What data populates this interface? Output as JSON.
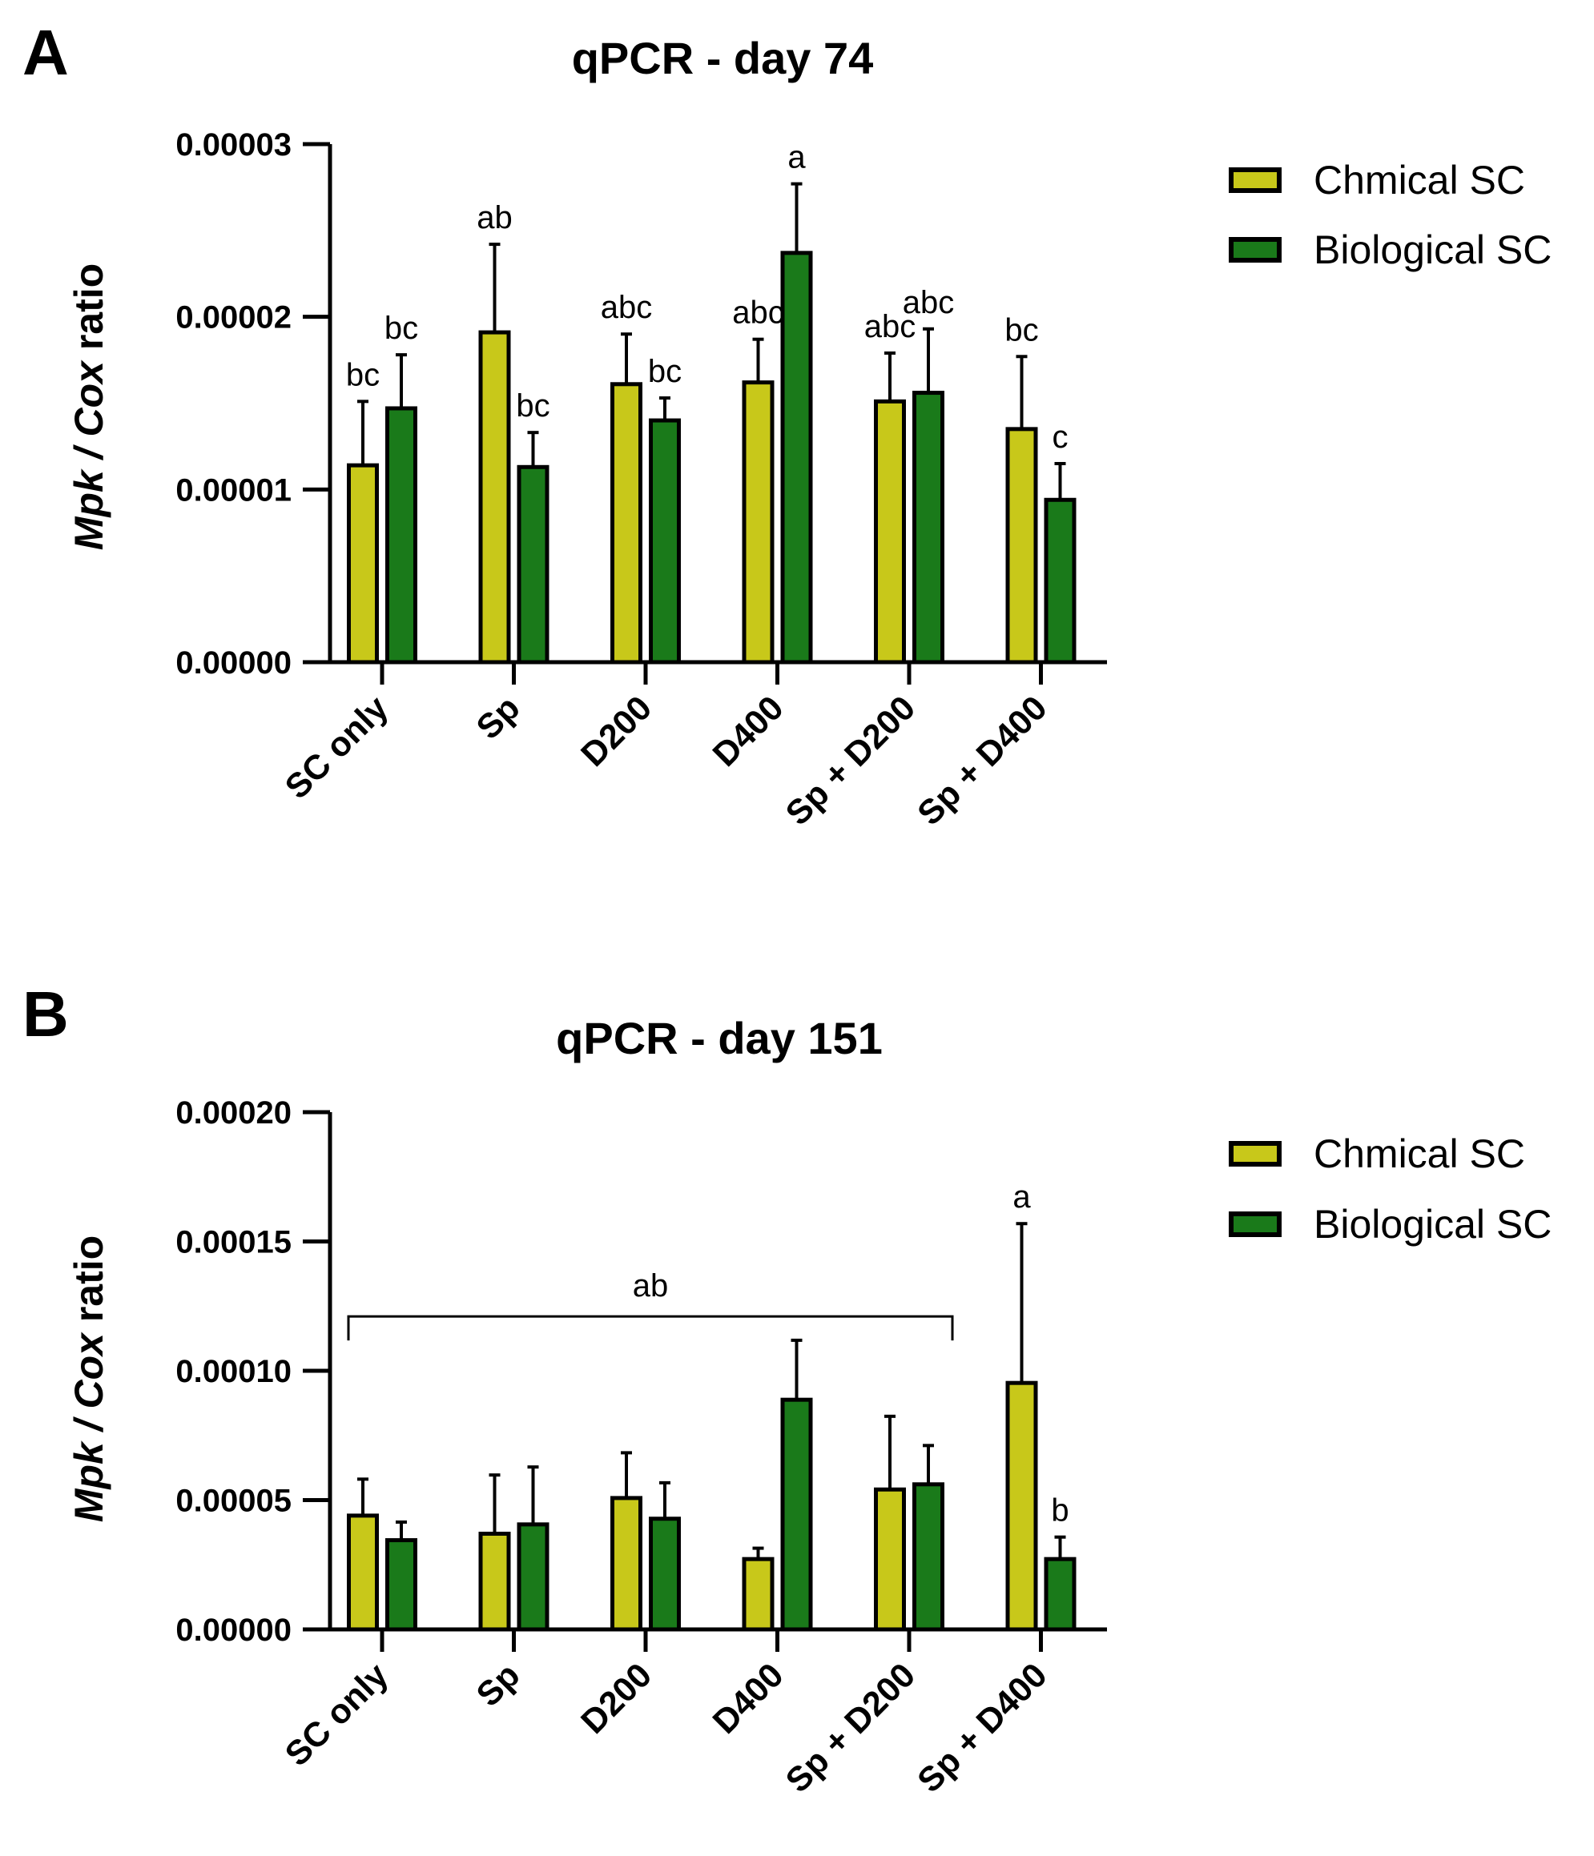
{
  "colors": {
    "chemical": "#c8c81a",
    "biological": "#1a7a1a",
    "stroke": "#000000"
  },
  "chart_data": [
    {
      "panel": "A",
      "type": "bar",
      "title": "qPCR - day 74",
      "ylabel": {
        "italic1": "Mpk",
        "sep": " / ",
        "italic2": "Cox",
        "suffix": " ratio"
      },
      "ylim": [
        0,
        3e-05
      ],
      "yticks": [
        {
          "value": 0,
          "label": "0.00000"
        },
        {
          "value": 1e-05,
          "label": "0.00001"
        },
        {
          "value": 2e-05,
          "label": "0.00002"
        },
        {
          "value": 3e-05,
          "label": "0.00003"
        }
      ],
      "categories": [
        "SC only",
        "Sp",
        "D200",
        "D400",
        "Sp + D200",
        "Sp + D400"
      ],
      "legend": [
        "Chmical SC",
        "Biological SC"
      ],
      "series": [
        {
          "name": "Chmical SC",
          "values": [
            1.14e-05,
            1.91e-05,
            1.61e-05,
            1.62e-05,
            1.51e-05,
            1.35e-05
          ],
          "errors": [
            3.7e-06,
            5.1e-06,
            2.9e-06,
            2.5e-06,
            2.8e-06,
            4.2e-06
          ],
          "letters": [
            "bc",
            "ab",
            "abc",
            "abc",
            "abc",
            "bc"
          ]
        },
        {
          "name": "Biological SC",
          "values": [
            1.47e-05,
            1.13e-05,
            1.4e-05,
            2.37e-05,
            1.56e-05,
            9.4e-06
          ],
          "errors": [
            3.1e-06,
            2e-06,
            1.3e-06,
            4e-06,
            3.7e-06,
            2.1e-06
          ],
          "letters": [
            "bc",
            "bc",
            "bc",
            "a",
            "abc",
            "c"
          ]
        }
      ]
    },
    {
      "panel": "B",
      "type": "bar",
      "title": "qPCR - day 151",
      "ylabel": {
        "italic1": "Mpk",
        "sep": " / ",
        "italic2": "Cox",
        "suffix": " ratio"
      },
      "ylim": [
        0,
        0.0002
      ],
      "yticks": [
        {
          "value": 0,
          "label": "0.00000"
        },
        {
          "value": 5e-05,
          "label": "0.00005"
        },
        {
          "value": 0.0001,
          "label": "0.00010"
        },
        {
          "value": 0.00015,
          "label": "0.00015"
        },
        {
          "value": 0.0002,
          "label": "0.00020"
        }
      ],
      "categories": [
        "SC only",
        "Sp",
        "D200",
        "D400",
        "Sp + D200",
        "Sp + D400"
      ],
      "legend": [
        "Chmical SC",
        "Biological SC"
      ],
      "series": [
        {
          "name": "Chmical SC",
          "values": [
            4.4e-05,
            3.7e-05,
            5.08e-05,
            2.72e-05,
            5.41e-05,
            9.53e-05
          ],
          "errors": [
            1.41e-05,
            2.27e-05,
            1.75e-05,
            4.2e-06,
            2.83e-05,
            6.16e-05
          ],
          "letters": [
            "",
            "",
            "",
            "",
            "",
            "a"
          ]
        },
        {
          "name": "Biological SC",
          "values": [
            3.45e-05,
            4.06e-05,
            4.28e-05,
            8.88e-05,
            5.61e-05,
            2.72e-05
          ],
          "errors": [
            7e-06,
            2.22e-05,
            1.39e-05,
            2.3e-05,
            1.5e-05,
            8.5e-06
          ],
          "letters": [
            "",
            "",
            "",
            "",
            "",
            "b"
          ]
        }
      ],
      "bracket": {
        "from_category": 0,
        "to_category": 4,
        "value": 0.000121,
        "label": "ab"
      }
    }
  ]
}
